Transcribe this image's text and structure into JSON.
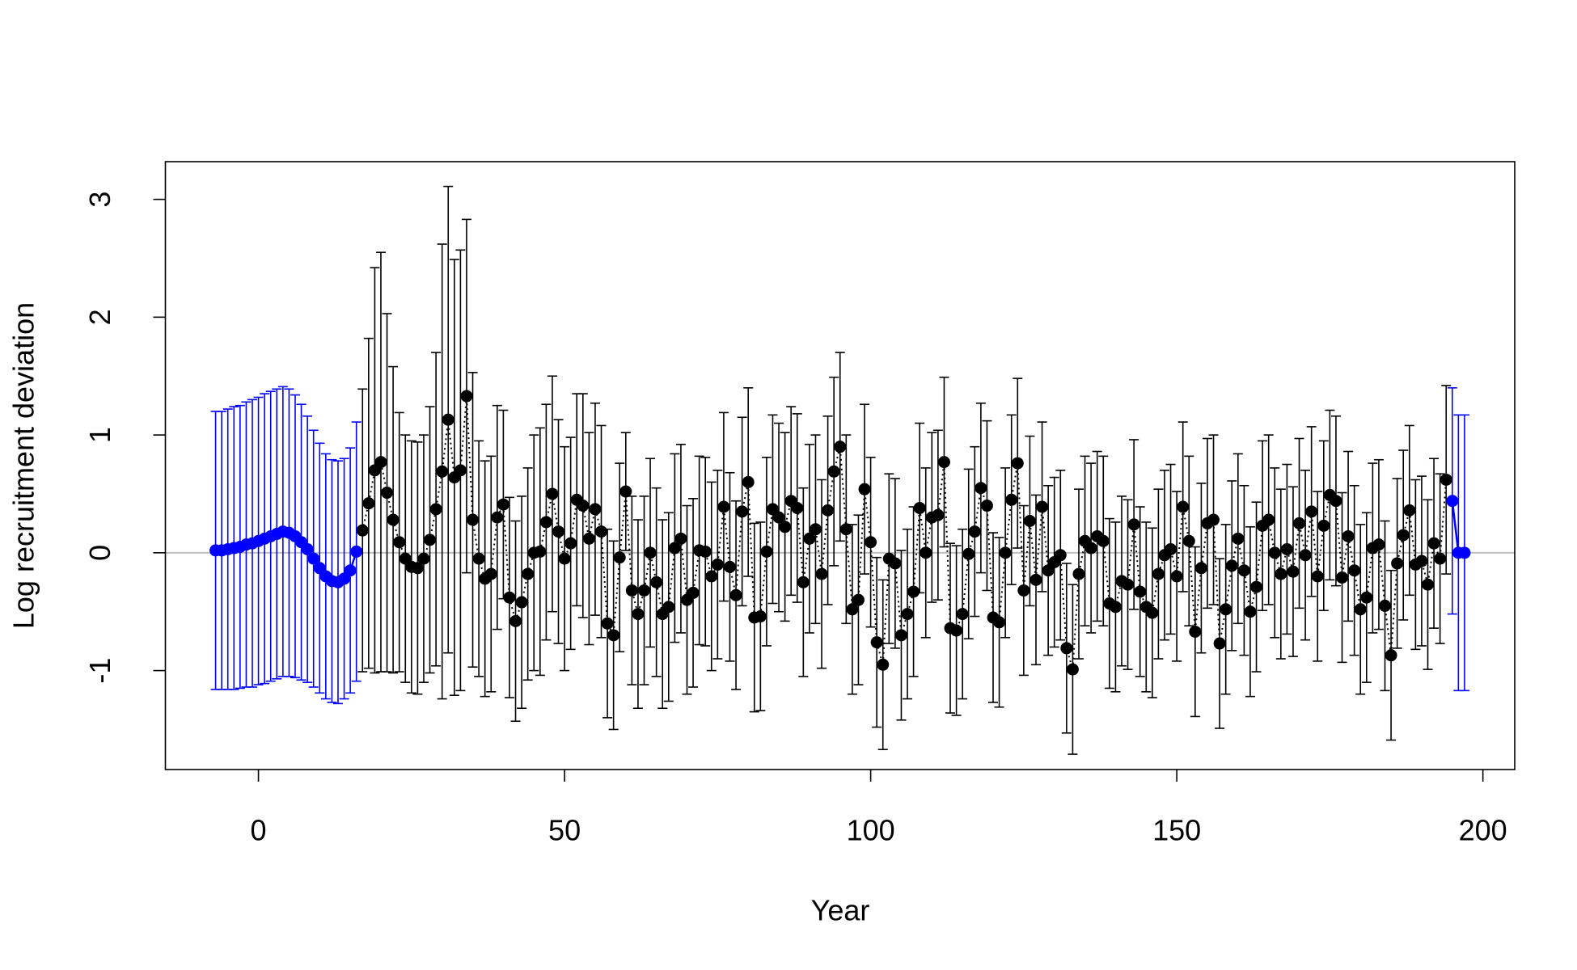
{
  "chart_data": {
    "type": "errorbar",
    "xlabel": "Year",
    "ylabel": "Log recruitment deviation",
    "xlim": [
      -15.2,
      205.2
    ],
    "ylim": [
      -1.84,
      3.32
    ],
    "xticks": [
      0,
      50,
      100,
      150,
      200
    ],
    "yticks": [
      -1,
      0,
      1,
      2,
      3
    ],
    "reference_line": 0,
    "reference_color": "#bebebe",
    "series": [
      {
        "color": "#0000ff",
        "line_style": "solid",
        "x": [
          -7,
          -6,
          -5,
          -4,
          -3,
          -2,
          -1,
          0,
          1,
          2,
          3,
          4,
          5,
          6,
          7,
          8,
          9,
          10,
          11,
          12,
          13,
          14,
          15,
          16
        ],
        "values": [
          0.02,
          0.02,
          0.03,
          0.04,
          0.05,
          0.07,
          0.08,
          0.1,
          0.12,
          0.14,
          0.16,
          0.18,
          0.17,
          0.14,
          0.09,
          0.03,
          -0.05,
          -0.13,
          -0.2,
          -0.24,
          -0.25,
          -0.22,
          -0.15,
          0.01
        ],
        "errors": [
          1.18,
          1.18,
          1.19,
          1.2,
          1.2,
          1.21,
          1.22,
          1.22,
          1.23,
          1.23,
          1.23,
          1.23,
          1.22,
          1.2,
          1.17,
          1.13,
          1.09,
          1.06,
          1.04,
          1.03,
          1.03,
          1.02,
          1.04,
          1.1
        ]
      },
      {
        "color": "#000000",
        "line_style": "dotted",
        "x": [
          17,
          18,
          19,
          20,
          21,
          22,
          23,
          24,
          25,
          26,
          27,
          28,
          29,
          30,
          31,
          32,
          33,
          34,
          35,
          36,
          37,
          38,
          39,
          40,
          41,
          42,
          43,
          44,
          45,
          46,
          47,
          48,
          49,
          50,
          51,
          52,
          53,
          54,
          55,
          56,
          57,
          58,
          59,
          60,
          61,
          62,
          63,
          64,
          65,
          66,
          67,
          68,
          69,
          70,
          71,
          72,
          73,
          74,
          75,
          76,
          77,
          78,
          79,
          80,
          81,
          82,
          83,
          84,
          85,
          86,
          87,
          88,
          89,
          90,
          91,
          92,
          93,
          94,
          95,
          96,
          97,
          98,
          99,
          100,
          101,
          102,
          103,
          104,
          105,
          106,
          107,
          108,
          109,
          110,
          111,
          112,
          113,
          114,
          115,
          116,
          117,
          118,
          119,
          120,
          121,
          122,
          123,
          124,
          125,
          126,
          127,
          128,
          129,
          130,
          131,
          132,
          133,
          134,
          135,
          136,
          137,
          138,
          139,
          140,
          141,
          142,
          143,
          144,
          145,
          146,
          147,
          148,
          149,
          150,
          151,
          152,
          153,
          154,
          155,
          156,
          157,
          158,
          159,
          160,
          161,
          162,
          163,
          164,
          165,
          166,
          167,
          168,
          169,
          170,
          171,
          172,
          173,
          174,
          175,
          176,
          177,
          178,
          179,
          180,
          181,
          182,
          183,
          184,
          185,
          186,
          187,
          188,
          189,
          190,
          191,
          192,
          193,
          194
        ],
        "values": [
          0.19,
          0.42,
          0.7,
          0.77,
          0.51,
          0.28,
          0.09,
          -0.05,
          -0.12,
          -0.13,
          -0.05,
          0.11,
          0.37,
          0.69,
          1.13,
          0.64,
          0.7,
          1.33,
          0.28,
          -0.05,
          -0.22,
          -0.18,
          0.3,
          0.41,
          -0.38,
          -0.58,
          -0.42,
          -0.18,
          0.0,
          0.01,
          0.26,
          0.5,
          0.18,
          -0.05,
          0.08,
          0.45,
          0.4,
          0.12,
          0.37,
          0.18,
          -0.6,
          -0.7,
          -0.04,
          0.52,
          -0.32,
          -0.52,
          -0.32,
          0.0,
          -0.25,
          -0.52,
          -0.46,
          0.04,
          0.12,
          -0.4,
          -0.34,
          0.02,
          0.01,
          -0.2,
          -0.1,
          0.39,
          -0.12,
          -0.36,
          0.35,
          0.6,
          -0.55,
          -0.54,
          0.01,
          0.37,
          0.3,
          0.22,
          0.44,
          0.38,
          -0.25,
          0.12,
          0.2,
          -0.18,
          0.36,
          0.69,
          0.9,
          0.2,
          -0.48,
          -0.4,
          0.54,
          0.09,
          -0.76,
          -0.95,
          -0.05,
          -0.09,
          -0.7,
          -0.52,
          -0.33,
          0.38,
          0.0,
          0.3,
          0.32,
          0.77,
          -0.64,
          -0.66,
          -0.52,
          -0.01,
          0.18,
          0.55,
          0.4,
          -0.55,
          -0.59,
          0.0,
          0.45,
          0.76,
          -0.32,
          0.27,
          -0.23,
          0.39,
          -0.15,
          -0.08,
          -0.02,
          -0.81,
          -0.99,
          -0.18,
          0.1,
          0.04,
          0.14,
          0.1,
          -0.43,
          -0.46,
          -0.24,
          -0.27,
          0.24,
          -0.33,
          -0.46,
          -0.51,
          -0.18,
          -0.02,
          0.03,
          -0.2,
          0.39,
          0.1,
          -0.67,
          -0.13,
          0.25,
          0.28,
          -0.77,
          -0.48,
          -0.11,
          0.12,
          -0.15,
          -0.5,
          -0.29,
          0.23,
          0.28,
          0.0,
          -0.18,
          0.03,
          -0.16,
          0.25,
          -0.02,
          0.35,
          -0.2,
          0.23,
          0.49,
          0.44,
          -0.21,
          0.14,
          -0.15,
          -0.48,
          -0.38,
          0.04,
          0.07,
          -0.45,
          -0.87,
          -0.09,
          0.15,
          0.36,
          -0.1,
          -0.07,
          -0.27,
          0.08,
          -0.05,
          0.62
        ],
        "errors": [
          1.2,
          1.4,
          1.72,
          1.78,
          1.52,
          1.3,
          1.1,
          1.05,
          1.07,
          1.07,
          1.05,
          1.13,
          1.33,
          1.93,
          1.98,
          1.85,
          1.87,
          1.5,
          1.25,
          1.0,
          1.0,
          1.0,
          0.95,
          0.8,
          0.85,
          0.85,
          0.9,
          0.9,
          1.0,
          1.05,
          1.0,
          1.0,
          0.95,
          0.95,
          0.9,
          0.9,
          0.95,
          0.9,
          0.9,
          0.9,
          0.8,
          0.8,
          0.8,
          0.5,
          0.8,
          0.8,
          0.8,
          0.8,
          0.8,
          0.8,
          0.8,
          0.8,
          0.8,
          0.8,
          0.8,
          0.8,
          0.8,
          0.8,
          0.8,
          0.8,
          0.8,
          0.8,
          0.8,
          0.8,
          0.8,
          0.8,
          0.8,
          0.8,
          0.8,
          0.8,
          0.8,
          0.8,
          0.8,
          0.8,
          0.8,
          0.8,
          0.8,
          0.8,
          0.8,
          0.8,
          0.72,
          0.72,
          0.72,
          0.72,
          0.72,
          0.72,
          0.72,
          0.72,
          0.72,
          0.72,
          0.72,
          0.72,
          0.72,
          0.72,
          0.72,
          0.72,
          0.72,
          0.72,
          0.72,
          0.72,
          0.72,
          0.72,
          0.72,
          0.72,
          0.72,
          0.72,
          0.72,
          0.72,
          0.72,
          0.72,
          0.72,
          0.72,
          0.72,
          0.72,
          0.72,
          0.72,
          0.72,
          0.72,
          0.72,
          0.72,
          0.72,
          0.72,
          0.72,
          0.72,
          0.72,
          0.72,
          0.72,
          0.72,
          0.72,
          0.72,
          0.72,
          0.72,
          0.72,
          0.72,
          0.72,
          0.72,
          0.72,
          0.72,
          0.72,
          0.72,
          0.72,
          0.72,
          0.72,
          0.72,
          0.72,
          0.72,
          0.72,
          0.72,
          0.72,
          0.72,
          0.72,
          0.72,
          0.72,
          0.72,
          0.72,
          0.72,
          0.72,
          0.72,
          0.72,
          0.72,
          0.72,
          0.72,
          0.72,
          0.72,
          0.72,
          0.72,
          0.72,
          0.72,
          0.72,
          0.72,
          0.72,
          0.72,
          0.72,
          0.72,
          0.72,
          0.72,
          0.72,
          0.8
        ]
      },
      {
        "color": "#0000ff",
        "line_style": "solid",
        "x": [
          195,
          196,
          197
        ],
        "values": [
          0.44,
          0.0,
          0.0
        ],
        "errors": [
          0.96,
          1.17,
          1.17
        ]
      }
    ]
  }
}
